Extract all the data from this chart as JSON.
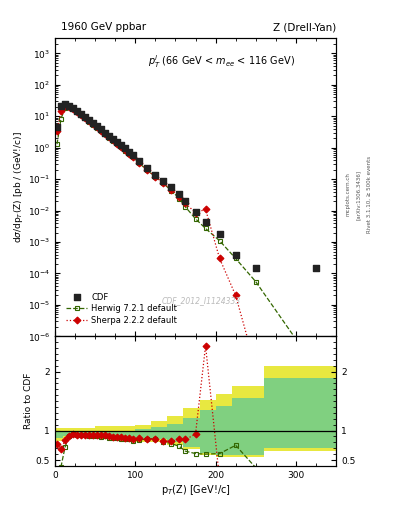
{
  "title_left": "1960 GeV ppbar",
  "title_right": "Z (Drell-Yan)",
  "annotation": "$p_T^l$ (66 GeV < $m_{ee}$ < 116 GeV)",
  "watermark": "CDF_2012_I1124333",
  "ylim_main": [
    1e-06,
    3000.0
  ],
  "ylim_ratio": [
    0.4,
    2.6
  ],
  "xlim": [
    0,
    350
  ],
  "cdf_x": [
    2.5,
    7.5,
    12.5,
    17.5,
    22.5,
    27.5,
    32.5,
    37.5,
    42.5,
    47.5,
    52.5,
    57.5,
    62.5,
    67.5,
    72.5,
    77.5,
    82.5,
    87.5,
    92.5,
    97.5,
    105,
    115,
    125,
    135,
    145,
    155,
    162.5,
    175,
    187.5,
    205,
    225,
    250,
    325
  ],
  "cdf_y": [
    4.5,
    22,
    25,
    22,
    18,
    15,
    12,
    9.5,
    7.5,
    6.0,
    4.8,
    3.8,
    3.0,
    2.4,
    1.9,
    1.5,
    1.2,
    0.95,
    0.75,
    0.6,
    0.38,
    0.22,
    0.14,
    0.09,
    0.055,
    0.033,
    0.02,
    0.009,
    0.0045,
    0.0018,
    0.0004,
    0.00015,
    0.00015
  ],
  "herwig_x": [
    2.5,
    7.5,
    12.5,
    17.5,
    22.5,
    27.5,
    32.5,
    37.5,
    42.5,
    47.5,
    52.5,
    57.5,
    62.5,
    67.5,
    72.5,
    77.5,
    82.5,
    87.5,
    92.5,
    97.5,
    105,
    115,
    125,
    135,
    145,
    155,
    162.5,
    175,
    187.5,
    205,
    225,
    250,
    325
  ],
  "herwig_y": [
    1.3,
    8.5,
    18,
    20,
    17,
    14,
    11,
    8.8,
    6.8,
    5.4,
    4.3,
    3.4,
    2.7,
    2.1,
    1.65,
    1.3,
    1.03,
    0.81,
    0.64,
    0.5,
    0.32,
    0.19,
    0.12,
    0.073,
    0.043,
    0.024,
    0.013,
    0.0055,
    0.0027,
    0.0011,
    0.0003,
    5.5e-05,
    1e-07
  ],
  "sherpa_x": [
    2.5,
    7.5,
    12.5,
    17.5,
    22.5,
    27.5,
    32.5,
    37.5,
    42.5,
    47.5,
    52.5,
    57.5,
    62.5,
    67.5,
    72.5,
    77.5,
    82.5,
    87.5,
    92.5,
    97.5,
    105,
    115,
    125,
    135,
    145,
    155,
    162.5,
    175,
    187.5,
    205,
    225,
    250,
    325
  ],
  "sherpa_y": [
    3.5,
    15,
    21,
    20,
    17,
    14,
    11,
    8.8,
    7.0,
    5.5,
    4.4,
    3.5,
    2.75,
    2.15,
    1.7,
    1.33,
    1.06,
    0.83,
    0.65,
    0.51,
    0.33,
    0.19,
    0.12,
    0.074,
    0.045,
    0.028,
    0.017,
    0.0085,
    0.011,
    0.0003,
    2e-05,
    1e-07,
    1e-07
  ],
  "herwig_ratio": [
    0.29,
    0.39,
    0.72,
    0.91,
    0.94,
    0.93,
    0.92,
    0.93,
    0.91,
    0.9,
    0.9,
    0.89,
    0.9,
    0.875,
    0.87,
    0.87,
    0.86,
    0.85,
    0.85,
    0.83,
    0.84,
    0.86,
    0.86,
    0.81,
    0.78,
    0.73,
    0.65,
    0.61,
    0.6,
    0.61,
    0.75,
    0.37,
    null
  ],
  "sherpa_ratio": [
    0.78,
    0.68,
    0.84,
    0.91,
    0.94,
    0.93,
    0.92,
    0.93,
    0.93,
    0.92,
    0.92,
    0.92,
    0.92,
    0.9,
    0.895,
    0.887,
    0.883,
    0.874,
    0.867,
    0.85,
    0.87,
    0.86,
    0.86,
    0.82,
    0.82,
    0.85,
    0.85,
    0.94,
    2.44,
    0.167,
    null,
    null,
    null
  ],
  "band_x_edges": [
    0,
    10,
    20,
    30,
    40,
    50,
    60,
    70,
    80,
    90,
    100,
    120,
    140,
    160,
    180,
    200,
    220,
    260,
    350
  ],
  "green_band_low": [
    0.88,
    0.91,
    0.93,
    0.93,
    0.91,
    0.9,
    0.89,
    0.87,
    0.86,
    0.85,
    0.84,
    0.85,
    0.8,
    0.72,
    0.62,
    0.59,
    0.59,
    0.7,
    0.35
  ],
  "green_band_high": [
    1.0,
    1.0,
    1.0,
    1.0,
    1.0,
    1.0,
    1.0,
    1.0,
    1.0,
    1.0,
    1.02,
    1.06,
    1.12,
    1.22,
    1.35,
    1.42,
    1.55,
    1.9,
    2.1
  ],
  "yellow_band_low": [
    0.83,
    0.87,
    0.89,
    0.89,
    0.87,
    0.86,
    0.85,
    0.83,
    0.82,
    0.81,
    0.8,
    0.81,
    0.76,
    0.68,
    0.58,
    0.55,
    0.55,
    0.65,
    0.3
  ],
  "yellow_band_high": [
    1.05,
    1.05,
    1.05,
    1.05,
    1.05,
    1.07,
    1.08,
    1.08,
    1.08,
    1.08,
    1.1,
    1.17,
    1.25,
    1.38,
    1.52,
    1.62,
    1.76,
    2.1,
    2.3
  ],
  "colors": {
    "cdf": "#222222",
    "herwig": "#336600",
    "sherpa": "#cc0000",
    "green_band": "#80d080",
    "yellow_band": "#e8e840"
  },
  "right_labels": [
    "Rivet 3.1.10, ≥ 500k events",
    "[arXiv:1306.3436]",
    "mcplots.cern.ch"
  ]
}
